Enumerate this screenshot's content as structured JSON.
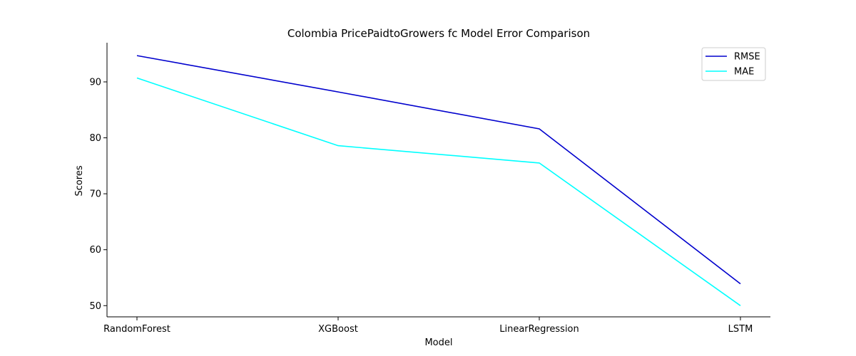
{
  "chart_data": {
    "type": "line",
    "title": "Colombia PricePaidtoGrowers fc Model Error Comparison",
    "xlabel": "Model",
    "ylabel": "Scores",
    "categories": [
      "RandomForest",
      "XGBoost",
      "LinearRegression",
      "LSTM"
    ],
    "ylim": [
      48,
      97
    ],
    "yticks": [
      50,
      60,
      70,
      80,
      90
    ],
    "grid": false,
    "legend_position": "top-right",
    "series": [
      {
        "name": "RMSE",
        "values": [
          94.7,
          88.2,
          81.6,
          53.9
        ],
        "color": "#0000cd"
      },
      {
        "name": "MAE",
        "values": [
          90.7,
          78.6,
          75.5,
          50.0
        ],
        "color": "#00ffff"
      }
    ]
  }
}
